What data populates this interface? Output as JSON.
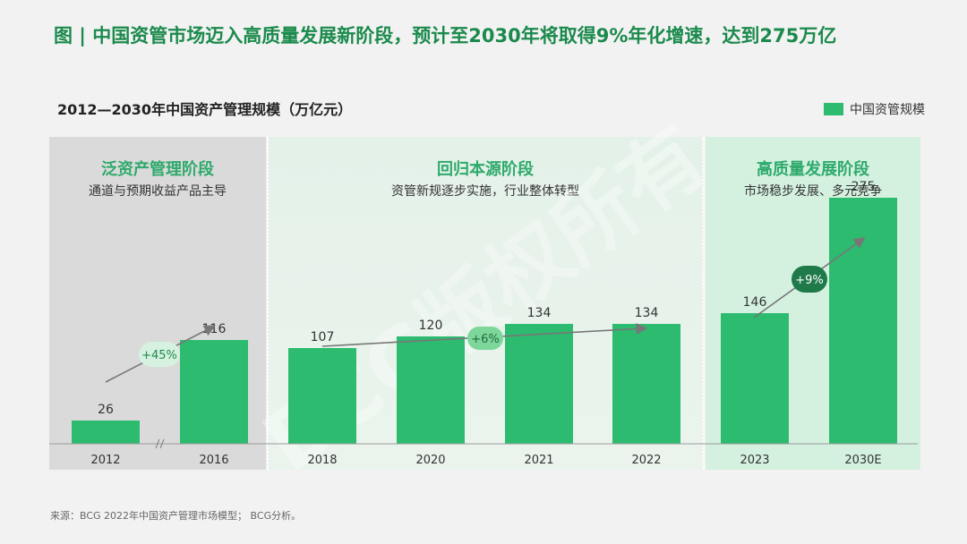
{
  "title": "图 | 中国资管市场迈入高质量发展新阶段，预计至2030年将取得9%年化增速，达到275万亿",
  "subtitle": "2012—2030年中国资产管理规模（万亿元）",
  "legend": {
    "label": "中国资管规模",
    "color": "#2dbb70"
  },
  "phases": [
    {
      "title": "泛资产管理阶段",
      "desc": "通道与预期收益产品主导"
    },
    {
      "title": "回归本源阶段",
      "desc": "资管新规逐步实施，行业整体转型"
    },
    {
      "title": "高质量发展阶段",
      "desc": "市场稳步发展、多元竞争"
    }
  ],
  "growth": [
    {
      "label": "+45%"
    },
    {
      "label": "+6%"
    },
    {
      "label": "+9%"
    }
  ],
  "watermark": "BCG版权所有",
  "footer": "来源：BCG 2022年中国资产管理市场模型；  BCG分析。",
  "chart_data": {
    "type": "bar",
    "categories": [
      "2012",
      "2016",
      "2018",
      "2020",
      "2021",
      "2022",
      "2023",
      "2030E"
    ],
    "series": [
      {
        "name": "中国资管规模",
        "values": [
          26,
          116,
          107,
          120,
          134,
          134,
          146,
          275
        ]
      }
    ],
    "ylim": [
      0,
      300
    ],
    "axis_break_between": [
      "2012",
      "2016"
    ],
    "grid": false,
    "legend_position": "top-right"
  }
}
